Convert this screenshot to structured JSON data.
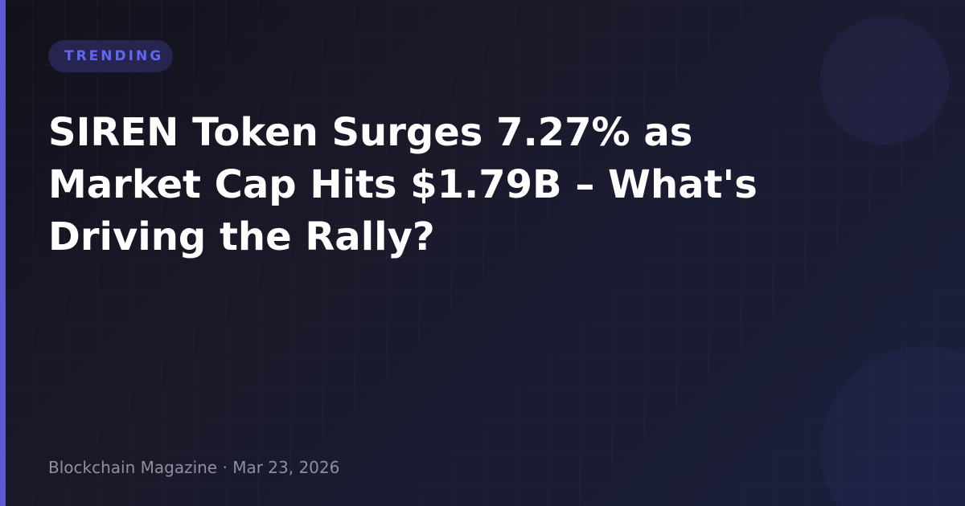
{
  "badge": "TRENDING",
  "title": "SIREN Token Surges 7.27% as Market Cap Hits $1.79B – What's Driving the Rally?",
  "meta": {
    "source": "Blockchain Magazine",
    "separator": " · ",
    "date": "Mar 23, 2026"
  },
  "colors": {
    "accent": "#5b5bd6",
    "badge_text": "#6366f1",
    "badge_bg": "#25254f",
    "background": "#16161f"
  }
}
